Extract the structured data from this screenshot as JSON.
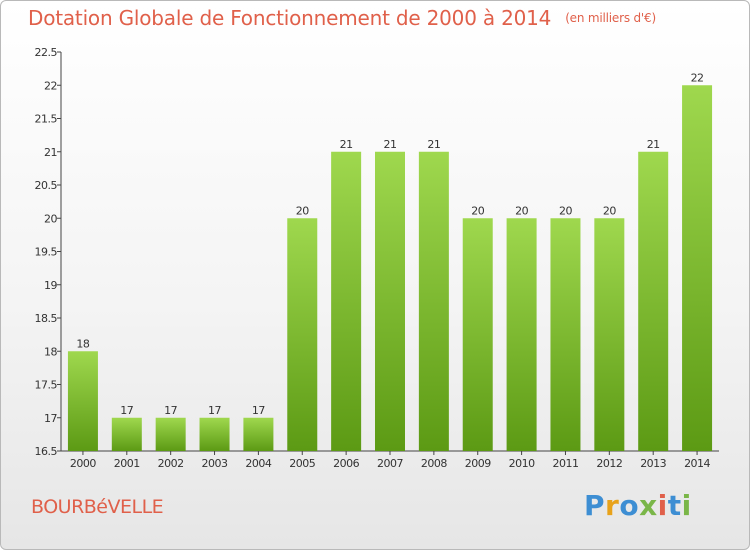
{
  "title": "Dotation Globale de Fonctionnement de 2000 à 2014",
  "unit": "(en milliers d'€)",
  "place": "BOURBéVELLE",
  "logo": {
    "letters": [
      "P",
      "r",
      "o",
      "x",
      "i",
      "t",
      "i"
    ],
    "colors": [
      "#3d8ed3",
      "#e8a21a",
      "#3d8ed3",
      "#7ab648",
      "#e0604a",
      "#3d8ed3",
      "#7ab648"
    ]
  },
  "colors": {
    "bar_top": "#9fd84e",
    "bar_bottom": "#5c9a14",
    "title": "#e0604a"
  },
  "chart_data": {
    "type": "bar",
    "categories": [
      "2000",
      "2001",
      "2002",
      "2003",
      "2004",
      "2005",
      "2006",
      "2007",
      "2008",
      "2009",
      "2010",
      "2011",
      "2012",
      "2013",
      "2014"
    ],
    "values": [
      18,
      17,
      17,
      17,
      17,
      20,
      21,
      21,
      21,
      20,
      20,
      20,
      20,
      21,
      22
    ],
    "title": "Dotation Globale de Fonctionnement de 2000 à 2014",
    "ylim": [
      16.5,
      22.5
    ],
    "yticks": [
      "16.5",
      "17",
      "17.5",
      "18",
      "18.5",
      "19",
      "19.5",
      "20",
      "20.5",
      "21",
      "21.5",
      "22",
      "22.5"
    ],
    "grid": false
  }
}
